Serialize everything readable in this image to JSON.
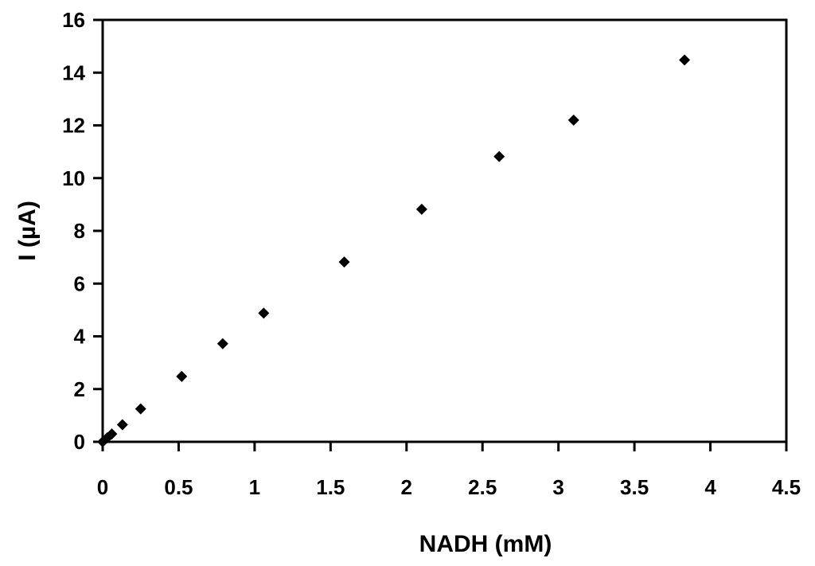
{
  "chart_data": {
    "type": "scatter",
    "title": "",
    "xlabel": "NADH (mM)",
    "ylabel": "I (µA)",
    "xlim": [
      0,
      4.5
    ],
    "ylim": [
      0,
      16
    ],
    "xticks": [
      "0",
      "0.5",
      "1",
      "1.5",
      "2",
      "2.5",
      "3",
      "3.5",
      "4",
      "4.5"
    ],
    "yticks": [
      "0",
      "2",
      "4",
      "6",
      "8",
      "10",
      "12",
      "14",
      "16"
    ],
    "grid": false,
    "legend": "none",
    "marker": "diamond",
    "marker_color": "#000000",
    "series": [
      {
        "x": [
          0.0,
          0.03,
          0.06,
          0.13,
          0.25,
          0.52,
          0.79,
          1.06,
          1.59,
          2.1,
          2.61,
          3.1,
          3.83
        ],
        "y": [
          0.0,
          0.15,
          0.3,
          0.65,
          1.25,
          2.48,
          3.72,
          4.88,
          6.82,
          8.82,
          10.82,
          12.2,
          14.48
        ]
      }
    ]
  }
}
